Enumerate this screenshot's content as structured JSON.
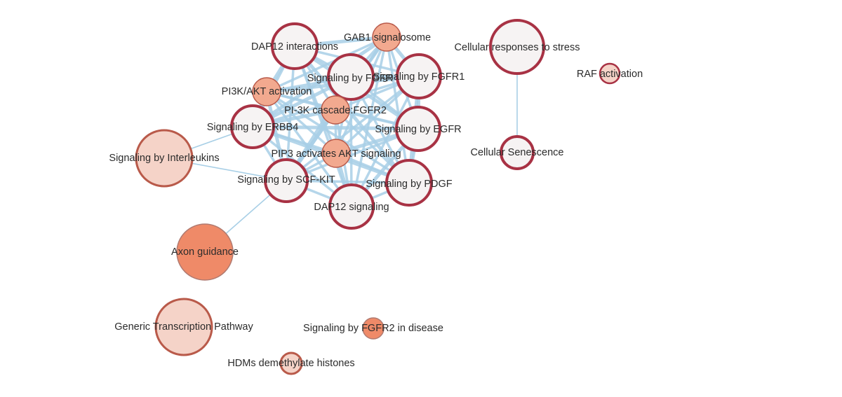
{
  "colors": {
    "edge": "#a8cfe6",
    "node_fill_white": "#f6f3f3",
    "node_fill_light": "#f5d3c8",
    "node_fill_salmon": "#f2a98f",
    "node_fill_orange": "#ef8a68",
    "stroke_dark_red": "#a83244",
    "stroke_rust": "#b95a4a",
    "stroke_grey": "#b07a70",
    "label": "#2b2b2b"
  },
  "network": {
    "nodes": [
      {
        "id": "dap12-interactions",
        "label": "DAP12 interactions",
        "style": "red-ring"
      },
      {
        "id": "gab1-signalosome",
        "label": "GAB1 signalosome",
        "style": "salmon"
      },
      {
        "id": "signaling-by-fgfr",
        "label": "Signaling by FGFR",
        "style": "red-ring"
      },
      {
        "id": "signaling-by-fgfr1",
        "label": "Signaling by FGFR1",
        "style": "red-ring"
      },
      {
        "id": "pi3k-akt-activation",
        "label": "PI3K/AKT activation",
        "style": "salmon"
      },
      {
        "id": "pi3k-cascade-fgfr2",
        "label": "PI-3K cascade:FGFR2",
        "style": "salmon"
      },
      {
        "id": "signaling-by-erbb4",
        "label": "Signaling by ERBB4",
        "style": "red-ring"
      },
      {
        "id": "signaling-by-egfr",
        "label": "Signaling by EGFR",
        "style": "red-ring"
      },
      {
        "id": "pip3-activates-akt",
        "label": "PIP3 activates AKT signaling",
        "style": "salmon"
      },
      {
        "id": "signaling-by-scf-kit",
        "label": "Signaling by SCF-KIT",
        "style": "red-ring"
      },
      {
        "id": "signaling-by-pdgf",
        "label": "Signaling by PDGF",
        "style": "red-ring"
      },
      {
        "id": "dap12-signaling",
        "label": "DAP12 signaling",
        "style": "red-ring"
      },
      {
        "id": "signaling-by-interleukins",
        "label": "Signaling by Interleukins",
        "style": "light"
      },
      {
        "id": "axon-guidance",
        "label": "Axon guidance",
        "style": "orange"
      },
      {
        "id": "cellular-responses-to-stress",
        "label": "Cellular responses to stress",
        "style": "red-ring"
      },
      {
        "id": "cellular-senescence",
        "label": "Cellular Senescence",
        "style": "red-ring"
      },
      {
        "id": "raf-activation",
        "label": "RAF activation",
        "style": "light-red"
      },
      {
        "id": "generic-transcription-pathway",
        "label": "Generic Transcription Pathway",
        "style": "light"
      },
      {
        "id": "signaling-by-fgfr2-in-disease",
        "label": "Signaling by FGFR2 in disease",
        "style": "orange"
      },
      {
        "id": "hdms-demethylate-histones",
        "label": "HDMs demethylate histones",
        "style": "light"
      }
    ],
    "edges": [
      [
        "dap12-interactions",
        "gab1-signalosome"
      ],
      [
        "dap12-interactions",
        "signaling-by-fgfr"
      ],
      [
        "dap12-interactions",
        "signaling-by-fgfr1"
      ],
      [
        "dap12-interactions",
        "pi3k-akt-activation"
      ],
      [
        "dap12-interactions",
        "pi3k-cascade-fgfr2"
      ],
      [
        "dap12-interactions",
        "signaling-by-erbb4"
      ],
      [
        "dap12-interactions",
        "signaling-by-egfr"
      ],
      [
        "dap12-interactions",
        "pip3-activates-akt"
      ],
      [
        "dap12-interactions",
        "signaling-by-scf-kit"
      ],
      [
        "dap12-interactions",
        "signaling-by-pdgf"
      ],
      [
        "dap12-interactions",
        "dap12-signaling"
      ],
      [
        "gab1-signalosome",
        "signaling-by-fgfr"
      ],
      [
        "gab1-signalosome",
        "signaling-by-fgfr1"
      ],
      [
        "gab1-signalosome",
        "pi3k-akt-activation"
      ],
      [
        "gab1-signalosome",
        "pi3k-cascade-fgfr2"
      ],
      [
        "gab1-signalosome",
        "signaling-by-erbb4"
      ],
      [
        "gab1-signalosome",
        "signaling-by-egfr"
      ],
      [
        "gab1-signalosome",
        "pip3-activates-akt"
      ],
      [
        "gab1-signalosome",
        "signaling-by-scf-kit"
      ],
      [
        "gab1-signalosome",
        "signaling-by-pdgf"
      ],
      [
        "gab1-signalosome",
        "dap12-signaling"
      ],
      [
        "signaling-by-fgfr",
        "signaling-by-fgfr1"
      ],
      [
        "signaling-by-fgfr",
        "pi3k-akt-activation"
      ],
      [
        "signaling-by-fgfr",
        "pi3k-cascade-fgfr2"
      ],
      [
        "signaling-by-fgfr",
        "signaling-by-erbb4"
      ],
      [
        "signaling-by-fgfr",
        "signaling-by-egfr"
      ],
      [
        "signaling-by-fgfr",
        "pip3-activates-akt"
      ],
      [
        "signaling-by-fgfr",
        "signaling-by-scf-kit"
      ],
      [
        "signaling-by-fgfr",
        "signaling-by-pdgf"
      ],
      [
        "signaling-by-fgfr",
        "dap12-signaling"
      ],
      [
        "signaling-by-fgfr1",
        "pi3k-akt-activation"
      ],
      [
        "signaling-by-fgfr1",
        "pi3k-cascade-fgfr2"
      ],
      [
        "signaling-by-fgfr1",
        "signaling-by-erbb4"
      ],
      [
        "signaling-by-fgfr1",
        "signaling-by-egfr"
      ],
      [
        "signaling-by-fgfr1",
        "pip3-activates-akt"
      ],
      [
        "signaling-by-fgfr1",
        "signaling-by-scf-kit"
      ],
      [
        "signaling-by-fgfr1",
        "signaling-by-pdgf"
      ],
      [
        "signaling-by-fgfr1",
        "dap12-signaling"
      ],
      [
        "pi3k-akt-activation",
        "pi3k-cascade-fgfr2"
      ],
      [
        "pi3k-akt-activation",
        "signaling-by-erbb4"
      ],
      [
        "pi3k-akt-activation",
        "signaling-by-egfr"
      ],
      [
        "pi3k-akt-activation",
        "pip3-activates-akt"
      ],
      [
        "pi3k-akt-activation",
        "signaling-by-scf-kit"
      ],
      [
        "pi3k-akt-activation",
        "signaling-by-pdgf"
      ],
      [
        "pi3k-akt-activation",
        "dap12-signaling"
      ],
      [
        "pi3k-cascade-fgfr2",
        "signaling-by-erbb4"
      ],
      [
        "pi3k-cascade-fgfr2",
        "signaling-by-egfr"
      ],
      [
        "pi3k-cascade-fgfr2",
        "pip3-activates-akt"
      ],
      [
        "pi3k-cascade-fgfr2",
        "signaling-by-scf-kit"
      ],
      [
        "pi3k-cascade-fgfr2",
        "signaling-by-pdgf"
      ],
      [
        "pi3k-cascade-fgfr2",
        "dap12-signaling"
      ],
      [
        "signaling-by-erbb4",
        "signaling-by-egfr"
      ],
      [
        "signaling-by-erbb4",
        "pip3-activates-akt"
      ],
      [
        "signaling-by-erbb4",
        "signaling-by-scf-kit"
      ],
      [
        "signaling-by-erbb4",
        "signaling-by-pdgf"
      ],
      [
        "signaling-by-erbb4",
        "dap12-signaling"
      ],
      [
        "signaling-by-erbb4",
        "signaling-by-interleukins"
      ],
      [
        "signaling-by-egfr",
        "pip3-activates-akt"
      ],
      [
        "signaling-by-egfr",
        "signaling-by-scf-kit"
      ],
      [
        "signaling-by-egfr",
        "signaling-by-pdgf"
      ],
      [
        "signaling-by-egfr",
        "dap12-signaling"
      ],
      [
        "pip3-activates-akt",
        "signaling-by-scf-kit"
      ],
      [
        "pip3-activates-akt",
        "signaling-by-pdgf"
      ],
      [
        "pip3-activates-akt",
        "dap12-signaling"
      ],
      [
        "signaling-by-scf-kit",
        "signaling-by-pdgf"
      ],
      [
        "signaling-by-scf-kit",
        "dap12-signaling"
      ],
      [
        "signaling-by-scf-kit",
        "signaling-by-interleukins"
      ],
      [
        "signaling-by-scf-kit",
        "axon-guidance"
      ],
      [
        "signaling-by-pdgf",
        "dap12-signaling"
      ],
      [
        "cellular-responses-to-stress",
        "cellular-senescence"
      ]
    ]
  }
}
